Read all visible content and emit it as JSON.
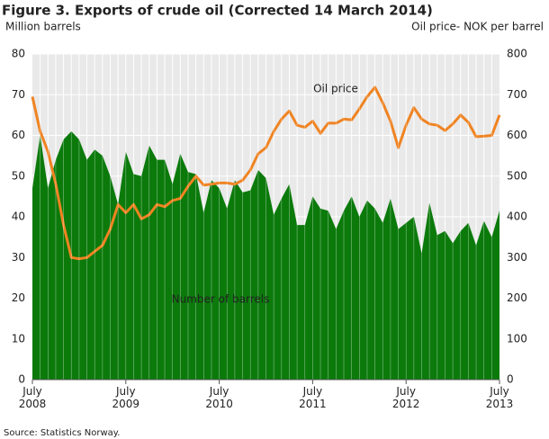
{
  "chart_data": {
    "type": "area-line",
    "title": "Figure 3. Exports of crude oil (Corrected 14 March 2014)",
    "y_label": "Million barrels",
    "y2_label": "Oil price- NOK per barrel",
    "source": "Source: Statistics Norway.",
    "annotations": [
      "Oil price",
      "Number of barrels"
    ],
    "categories": [
      "July 2008",
      null,
      null,
      null,
      null,
      null,
      null,
      null,
      null,
      null,
      null,
      null,
      "July 2009",
      null,
      null,
      null,
      null,
      null,
      null,
      null,
      null,
      null,
      null,
      null,
      "July 2010",
      null,
      null,
      null,
      null,
      null,
      null,
      null,
      null,
      null,
      null,
      null,
      "July 2011",
      null,
      null,
      null,
      null,
      null,
      null,
      null,
      null,
      null,
      null,
      null,
      "July 2012",
      null,
      null,
      null,
      null,
      null,
      null,
      null,
      null,
      null,
      null,
      null,
      "July 2013"
    ],
    "series": [
      {
        "name": "Number of barrels",
        "color": "#0b7a0b",
        "values": [
          47,
          60,
          47,
          54,
          59,
          61,
          59,
          54,
          56.5,
          55,
          50,
          43,
          56,
          50.5,
          50,
          57.5,
          54,
          54,
          48,
          55.5,
          51,
          50.5,
          41,
          49,
          47,
          42,
          49,
          46,
          46.5,
          51.5,
          49.5,
          40.5,
          44.5,
          48,
          38,
          38,
          45,
          42,
          41.5,
          37,
          41.5,
          45,
          40,
          44,
          42,
          38.5,
          44.5,
          37,
          38.5,
          40,
          31,
          43.5,
          35.5,
          36.5,
          33.5,
          36.5,
          38.5,
          33,
          39,
          35,
          41.5
        ]
      },
      {
        "name": "Oil price",
        "color": "#f08321",
        "axis": "y2",
        "values": [
          695,
          610,
          560,
          480,
          380,
          300,
          297,
          300,
          315,
          330,
          370,
          430,
          410,
          430,
          395,
          405,
          430,
          425,
          440,
          445,
          475,
          500,
          478,
          480,
          483,
          483,
          480,
          490,
          515,
          555,
          570,
          610,
          640,
          660,
          625,
          620,
          635,
          605,
          630,
          630,
          640,
          638,
          665,
          695,
          718,
          680,
          635,
          570,
          625,
          668,
          640,
          628,
          625,
          612,
          628,
          650,
          632,
          597,
          598,
          600,
          650
        ]
      }
    ],
    "ylim": [
      0,
      80
    ],
    "yticks": [
      0,
      10,
      20,
      30,
      40,
      50,
      60,
      70,
      80
    ],
    "y2lim": [
      0,
      800
    ],
    "y2ticks": [
      0,
      100,
      200,
      300,
      400,
      500,
      600,
      700,
      800
    ],
    "grid": true
  }
}
